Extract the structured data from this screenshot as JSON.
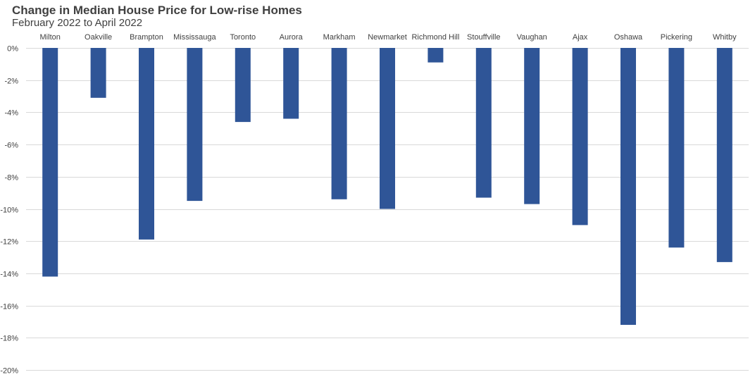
{
  "chart_data": {
    "type": "bar",
    "title": "Change in Median House Price for Low-rise Homes",
    "subtitle": "February 2022 to April 2022",
    "xlabel": "",
    "ylabel": "",
    "categories": [
      "Milton",
      "Oakville",
      "Brampton",
      "Mississauga",
      "Toronto",
      "Aurora",
      "Markham",
      "Newmarket",
      "Richmond Hill",
      "Stouffville",
      "Vaughan",
      "Ajax",
      "Oshawa",
      "Pickering",
      "Whitby"
    ],
    "values": [
      -14.2,
      -3.1,
      -11.9,
      -9.5,
      -4.6,
      -4.4,
      -9.4,
      -10.0,
      -0.9,
      -9.3,
      -9.7,
      -11.0,
      -17.2,
      -12.4,
      -13.3
    ],
    "unit": "%",
    "ylim": [
      -20,
      0
    ],
    "yticks": [
      0,
      -2,
      -4,
      -6,
      -8,
      -10,
      -12,
      -14,
      -16,
      -18,
      -20
    ],
    "ytick_labels": [
      "0%",
      "-2%",
      "-4%",
      "-6%",
      "-8%",
      "-10%",
      "-12%",
      "-14%",
      "-16%",
      "-18%",
      "-20%"
    ],
    "grid": true,
    "legend": "none",
    "bar_color": "#2f5597",
    "grid_color": "#d9d9d9",
    "text_color": "#404040"
  }
}
